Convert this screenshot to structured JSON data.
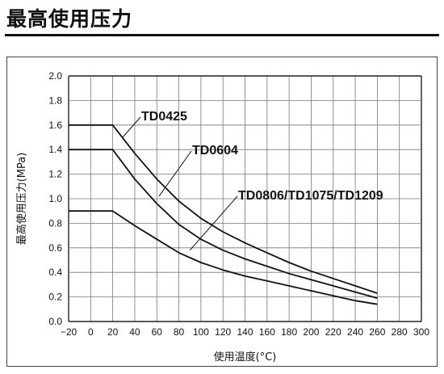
{
  "page": {
    "title": "最高使用压力"
  },
  "chart_data": {
    "type": "line",
    "title": "",
    "xlabel": "使用温度(°C)",
    "ylabel": "最高使用压力(MPa)",
    "xlim": [
      -20,
      300
    ],
    "ylim": [
      0,
      2.0
    ],
    "xticks": [
      -20,
      0,
      20,
      40,
      60,
      80,
      100,
      120,
      140,
      160,
      180,
      200,
      220,
      240,
      260,
      280,
      300
    ],
    "yticks": [
      0.0,
      0.2,
      0.4,
      0.6,
      0.8,
      1.0,
      1.2,
      1.4,
      1.6,
      1.8,
      2.0
    ],
    "grid": true,
    "series": [
      {
        "name": "TD0425",
        "x": [
          -20,
          20,
          40,
          60,
          80,
          100,
          120,
          140,
          160,
          180,
          200,
          220,
          240,
          260
        ],
        "y": [
          1.6,
          1.6,
          1.37,
          1.16,
          0.98,
          0.84,
          0.73,
          0.64,
          0.56,
          0.48,
          0.41,
          0.35,
          0.29,
          0.23
        ]
      },
      {
        "name": "TD0604",
        "x": [
          -20,
          20,
          40,
          60,
          80,
          100,
          120,
          140,
          160,
          180,
          200,
          220,
          240,
          260
        ],
        "y": [
          1.4,
          1.4,
          1.16,
          0.96,
          0.79,
          0.67,
          0.58,
          0.51,
          0.45,
          0.39,
          0.34,
          0.29,
          0.24,
          0.19
        ]
      },
      {
        "name": "TD0806/TD1075/TD1209",
        "x": [
          -20,
          20,
          40,
          60,
          80,
          100,
          120,
          140,
          160,
          180,
          200,
          220,
          240,
          260
        ],
        "y": [
          0.9,
          0.9,
          0.78,
          0.67,
          0.56,
          0.48,
          0.42,
          0.37,
          0.33,
          0.29,
          0.25,
          0.21,
          0.17,
          0.14
        ]
      }
    ],
    "annotations": [
      {
        "text": "TD0425",
        "series": 0,
        "x": 29,
        "y": 1.5
      },
      {
        "text": "TD0604",
        "series": 1,
        "x": 62,
        "y": 1.02
      },
      {
        "text": "TD0806/TD1075/TD1209",
        "series": 2,
        "x": 90,
        "y": 0.58
      }
    ]
  }
}
